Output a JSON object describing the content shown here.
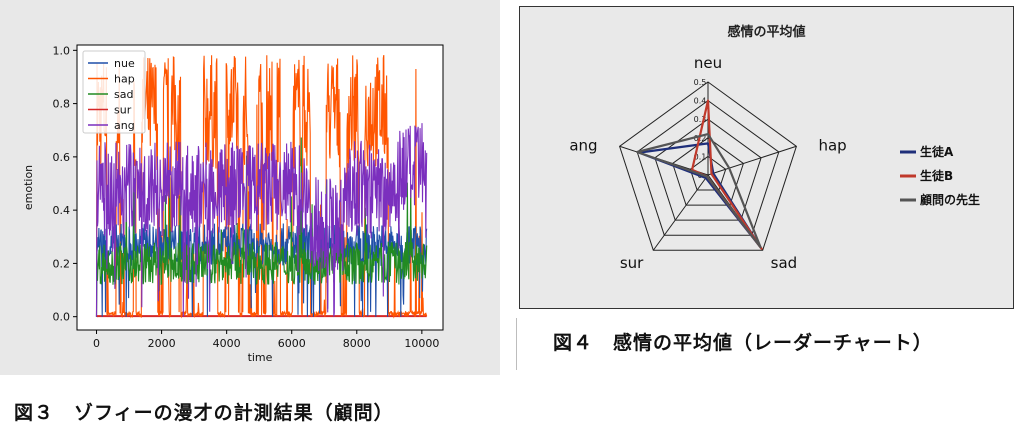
{
  "chart_data": [
    {
      "type": "line",
      "xlabel": "time",
      "ylabel": "emotion",
      "xlim": [
        -600,
        10650
      ],
      "ylim": [
        -0.05,
        1.02
      ],
      "xticks": [
        "0",
        "2000",
        "4000",
        "6000",
        "8000",
        "10000"
      ],
      "yticks": [
        "0.0",
        "0.2",
        "0.4",
        "0.6",
        "0.8",
        "1.0"
      ],
      "legend_position": "top-left",
      "series": [
        {
          "name": "nue",
          "color": "#1f4fa8",
          "baseline": 0.27,
          "spread": 0.05
        },
        {
          "name": "hap",
          "color": "#ff5500",
          "baseline": 0.0,
          "spread": 0.98
        },
        {
          "name": "sad",
          "color": "#228b22",
          "baseline": 0.2,
          "spread": 0.08
        },
        {
          "name": "sur",
          "color": "#d62728",
          "baseline": 0.0,
          "spread": 0.0
        },
        {
          "name": "ang",
          "color": "#7b2fbe",
          "baseline": 0.5,
          "spread": 0.15
        }
      ]
    },
    {
      "type": "radar",
      "title": "感情の平均値",
      "axes": [
        "neu",
        "hap",
        "sad",
        "sur",
        "ang"
      ],
      "rticks": [
        "0",
        "0.1",
        "0.2",
        "0.3",
        "0.4",
        "0.5"
      ],
      "rmax": 0.5,
      "legend_position": "right",
      "series": [
        {
          "name": "生徒A",
          "color": "#1f2f7a",
          "values": [
            0.17,
            0.03,
            0.48,
            0.02,
            0.39
          ]
        },
        {
          "name": "生徒B",
          "color": "#c0392b",
          "values": [
            0.4,
            0.02,
            0.49,
            0.01,
            0.09
          ]
        },
        {
          "name": "顧問の先生",
          "color": "#555555",
          "values": [
            0.22,
            0.12,
            0.48,
            0.01,
            0.4
          ]
        }
      ]
    }
  ],
  "captions": {
    "fig3": "図３　ゾフィーの漫才の計測結果（顧問）",
    "fig4": "図４　感情の平均値（レーダーチャート）"
  }
}
